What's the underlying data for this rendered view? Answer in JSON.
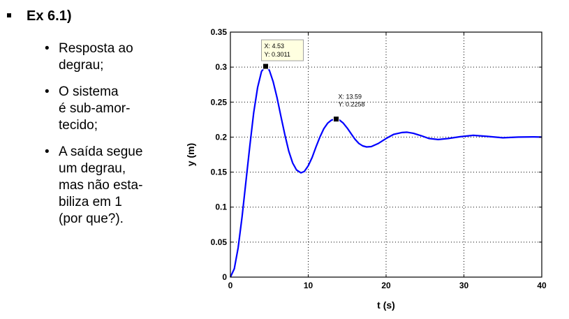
{
  "slide": {
    "heading": "Ex 6.1)",
    "bullets": [
      {
        "lines": [
          "Resposta ao",
          "degrau;"
        ]
      },
      {
        "lines": [
          "O sistema",
          "é sub-amor-",
          "tecido;"
        ]
      },
      {
        "lines": [
          "A saída segue",
          "um degrau,",
          "mas não esta-",
          "biliza em 1",
          "(por que?)."
        ]
      }
    ]
  },
  "chart_data": {
    "type": "line",
    "title": "",
    "xlabel": "t (s)",
    "ylabel": "y (m)",
    "xlim": [
      0,
      40
    ],
    "ylim": [
      0,
      0.35
    ],
    "grid": true,
    "x_ticks": [
      0,
      10,
      20,
      30,
      40
    ],
    "y_ticks": [
      0,
      0.05,
      0.1,
      0.15,
      0.2,
      0.25,
      0.3,
      0.35
    ],
    "x_tick_labels": [
      "0",
      "10",
      "20",
      "30",
      "40"
    ],
    "y_tick_labels": [
      "0",
      "0.05",
      "0.1",
      "0.15",
      "0.2",
      "0.25",
      "0.3",
      "0.35"
    ],
    "series": [
      {
        "color": "#0000ff",
        "x": [
          0,
          0.5,
          1,
          1.5,
          2,
          2.5,
          3,
          3.5,
          4,
          4.53,
          5,
          5.5,
          6,
          6.5,
          7,
          7.5,
          8,
          8.5,
          9.06,
          9.5,
          10,
          10.5,
          11,
          11.5,
          12,
          12.5,
          13,
          13.59,
          14,
          14.5,
          15,
          15.5,
          16,
          16.5,
          17,
          17.5,
          18.1,
          19,
          20,
          21,
          22,
          22.7,
          23.5,
          24.5,
          25.5,
          26.7,
          28,
          29.5,
          31.2,
          33,
          35,
          37,
          39,
          40
        ],
        "y": [
          0,
          0.012,
          0.042,
          0.086,
          0.137,
          0.188,
          0.235,
          0.271,
          0.294,
          0.3011,
          0.2955,
          0.279,
          0.256,
          0.229,
          0.203,
          0.18,
          0.163,
          0.153,
          0.149,
          0.151,
          0.159,
          0.171,
          0.186,
          0.2,
          0.212,
          0.22,
          0.2245,
          0.2258,
          0.2245,
          0.22,
          0.213,
          0.205,
          0.197,
          0.191,
          0.1875,
          0.186,
          0.1865,
          0.191,
          0.198,
          0.204,
          0.2065,
          0.207,
          0.2055,
          0.202,
          0.198,
          0.1965,
          0.198,
          0.2005,
          0.2025,
          0.201,
          0.199,
          0.2,
          0.2003,
          0.2
        ]
      }
    ],
    "datatips": [
      {
        "x": 4.53,
        "y": 0.3011,
        "text_x": "X: 4.53",
        "text_y": "Y: 0.3011",
        "boxed": true
      },
      {
        "x": 13.59,
        "y": 0.2258,
        "text_x": "X: 13.59",
        "text_y": "Y: 0.2258",
        "boxed": false
      }
    ]
  },
  "colors": {
    "line": "#0000ff",
    "datatip_bg": "#ffffe0",
    "datatip_border": "#a0a0a0"
  }
}
